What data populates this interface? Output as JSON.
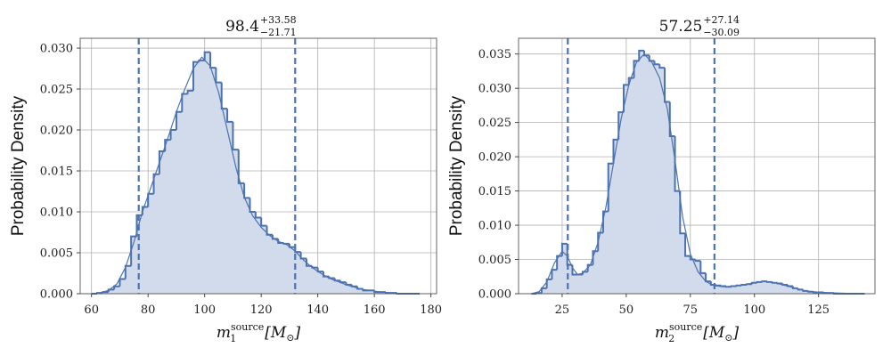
{
  "chart_data": [
    {
      "type": "histogram",
      "title": {
        "main": "98.4",
        "plus": "+33.58",
        "minus": "−21.71"
      },
      "ylabel": "Probability Density",
      "xlabel": {
        "var": "m",
        "sub": "1",
        "sup": "source",
        "unit": "[M",
        "unit_sub": "⊙",
        "unit_close": "]"
      },
      "xlim": [
        56,
        182
      ],
      "ylim": [
        0,
        0.0312
      ],
      "xticks": [
        60,
        80,
        100,
        120,
        140,
        160,
        180
      ],
      "yticks": [
        0.0,
        0.005,
        0.01,
        0.015,
        0.02,
        0.025,
        0.03
      ],
      "ytick_labels": [
        "0.000",
        "0.005",
        "0.010",
        "0.015",
        "0.020",
        "0.025",
        "0.030"
      ],
      "grid": true,
      "color": "#4c72b0",
      "fill_color": "#d1dbeb",
      "quantile_lines": [
        76.7,
        132.0
      ],
      "bin_edges": [
        60,
        62,
        64,
        66,
        68,
        70,
        72,
        74,
        76,
        78,
        80,
        82,
        84,
        86,
        88,
        90,
        92,
        94,
        96,
        98,
        100,
        102,
        104,
        106,
        108,
        110,
        112,
        114,
        116,
        118,
        120,
        122,
        124,
        126,
        128,
        130,
        132,
        134,
        136,
        138,
        140,
        142,
        144,
        146,
        148,
        150,
        152,
        154,
        156,
        158,
        160,
        162,
        164,
        166,
        168,
        170,
        172,
        174,
        176
      ],
      "densities": [
        0.0,
        0.0001,
        0.0002,
        0.0005,
        0.0009,
        0.0018,
        0.0034,
        0.007,
        0.0096,
        0.0106,
        0.0122,
        0.0146,
        0.0174,
        0.0188,
        0.02,
        0.0222,
        0.0244,
        0.0248,
        0.0283,
        0.0285,
        0.0295,
        0.0276,
        0.0258,
        0.0226,
        0.021,
        0.0176,
        0.0135,
        0.0117,
        0.01,
        0.0093,
        0.0083,
        0.0072,
        0.0067,
        0.0062,
        0.0061,
        0.0057,
        0.0051,
        0.0043,
        0.0034,
        0.0032,
        0.0027,
        0.0021,
        0.0019,
        0.0016,
        0.0014,
        0.0011,
        0.0009,
        0.0006,
        0.0004,
        0.0004,
        0.0002,
        0.0002,
        0.0001,
        0.0001,
        0.0,
        0.0,
        0.0,
        0.0
      ],
      "kde": [
        [
          60,
          0.0
        ],
        [
          63,
          0.0001
        ],
        [
          66,
          0.0004
        ],
        [
          69,
          0.0012
        ],
        [
          72,
          0.0032
        ],
        [
          75,
          0.0063
        ],
        [
          78,
          0.01
        ],
        [
          81,
          0.013
        ],
        [
          84,
          0.016
        ],
        [
          87,
          0.019
        ],
        [
          90,
          0.0222
        ],
        [
          93,
          0.025
        ],
        [
          96,
          0.0275
        ],
        [
          99,
          0.0289
        ],
        [
          102,
          0.0278
        ],
        [
          105,
          0.0245
        ],
        [
          108,
          0.02
        ],
        [
          111,
          0.0155
        ],
        [
          114,
          0.0118
        ],
        [
          117,
          0.0095
        ],
        [
          120,
          0.0081
        ],
        [
          123,
          0.0071
        ],
        [
          126,
          0.0064
        ],
        [
          129,
          0.006
        ],
        [
          132,
          0.0052
        ],
        [
          135,
          0.0041
        ],
        [
          138,
          0.0032
        ],
        [
          141,
          0.0025
        ],
        [
          144,
          0.0019
        ],
        [
          147,
          0.0015
        ],
        [
          150,
          0.0011
        ],
        [
          153,
          0.0008
        ],
        [
          156,
          0.0005
        ],
        [
          159,
          0.0004
        ],
        [
          162,
          0.0002
        ],
        [
          166,
          0.0001
        ],
        [
          170,
          0.0
        ],
        [
          176,
          0.0
        ]
      ]
    },
    {
      "type": "histogram",
      "title": {
        "main": "57.25",
        "plus": "+27.14",
        "minus": "−30.09"
      },
      "ylabel": "Probability Density",
      "xlabel": {
        "var": "m",
        "sub": "2",
        "sup": "source",
        "unit": "[M",
        "unit_sub": "⊙",
        "unit_close": "]"
      },
      "xlim": [
        8,
        147
      ],
      "ylim": [
        0,
        0.0373
      ],
      "xticks": [
        25,
        50,
        75,
        100,
        125
      ],
      "yticks": [
        0.0,
        0.005,
        0.01,
        0.015,
        0.02,
        0.025,
        0.03,
        0.035
      ],
      "ytick_labels": [
        "0.000",
        "0.005",
        "0.010",
        "0.015",
        "0.020",
        "0.025",
        "0.030",
        "0.035"
      ],
      "grid": true,
      "color": "#4c72b0",
      "fill_color": "#d1dbeb",
      "quantile_lines": [
        27.2,
        84.4
      ],
      "bin_edges": [
        13,
        15,
        17,
        19,
        21,
        23,
        25,
        27,
        29,
        31,
        33,
        35,
        37,
        39,
        41,
        43,
        45,
        47,
        49,
        51,
        53,
        55,
        57,
        59,
        61,
        63,
        65,
        67,
        69,
        71,
        73,
        75,
        77,
        79,
        81,
        83,
        85,
        87,
        89,
        91,
        93,
        95,
        97,
        99,
        101,
        103,
        105,
        107,
        109,
        111,
        113,
        115,
        117,
        119,
        121,
        123,
        125,
        127,
        129,
        131,
        133,
        135,
        137,
        139,
        141,
        143
      ],
      "densities": [
        0.0,
        0.0001,
        0.0008,
        0.0021,
        0.0035,
        0.0055,
        0.0073,
        0.0042,
        0.0028,
        0.0028,
        0.0032,
        0.0042,
        0.0062,
        0.0089,
        0.012,
        0.019,
        0.0225,
        0.0265,
        0.0305,
        0.0315,
        0.034,
        0.0355,
        0.0348,
        0.034,
        0.0335,
        0.033,
        0.028,
        0.023,
        0.015,
        0.0088,
        0.0055,
        0.005,
        0.0048,
        0.003,
        0.0018,
        0.0013,
        0.0012,
        0.0011,
        0.001,
        0.0011,
        0.0012,
        0.0013,
        0.0014,
        0.0016,
        0.0017,
        0.0018,
        0.0017,
        0.0016,
        0.0015,
        0.0013,
        0.0011,
        0.0008,
        0.0006,
        0.0004,
        0.0003,
        0.0002,
        0.0002,
        0.0001,
        0.0001,
        0.0,
        0.0,
        0.0,
        0.0,
        0.0,
        0.0
      ],
      "kde": [
        [
          13,
          0.0
        ],
        [
          16,
          0.0003
        ],
        [
          19,
          0.0017
        ],
        [
          22,
          0.0045
        ],
        [
          25,
          0.0062
        ],
        [
          27,
          0.0055
        ],
        [
          29,
          0.0038
        ],
        [
          31,
          0.0028
        ],
        [
          33,
          0.003
        ],
        [
          36,
          0.0042
        ],
        [
          39,
          0.0075
        ],
        [
          42,
          0.0125
        ],
        [
          45,
          0.019
        ],
        [
          48,
          0.0255
        ],
        [
          51,
          0.0305
        ],
        [
          54,
          0.0338
        ],
        [
          57,
          0.035
        ],
        [
          60,
          0.0338
        ],
        [
          63,
          0.0315
        ],
        [
          66,
          0.027
        ],
        [
          69,
          0.0195
        ],
        [
          72,
          0.0112
        ],
        [
          75,
          0.0058
        ],
        [
          78,
          0.0032
        ],
        [
          81,
          0.0018
        ],
        [
          84,
          0.0012
        ],
        [
          88,
          0.001
        ],
        [
          92,
          0.0011
        ],
        [
          96,
          0.0013
        ],
        [
          100,
          0.0016
        ],
        [
          104,
          0.0018
        ],
        [
          108,
          0.0016
        ],
        [
          112,
          0.0012
        ],
        [
          116,
          0.0008
        ],
        [
          120,
          0.0004
        ],
        [
          126,
          0.0002
        ],
        [
          132,
          0.0001
        ],
        [
          140,
          0.0
        ]
      ]
    }
  ]
}
